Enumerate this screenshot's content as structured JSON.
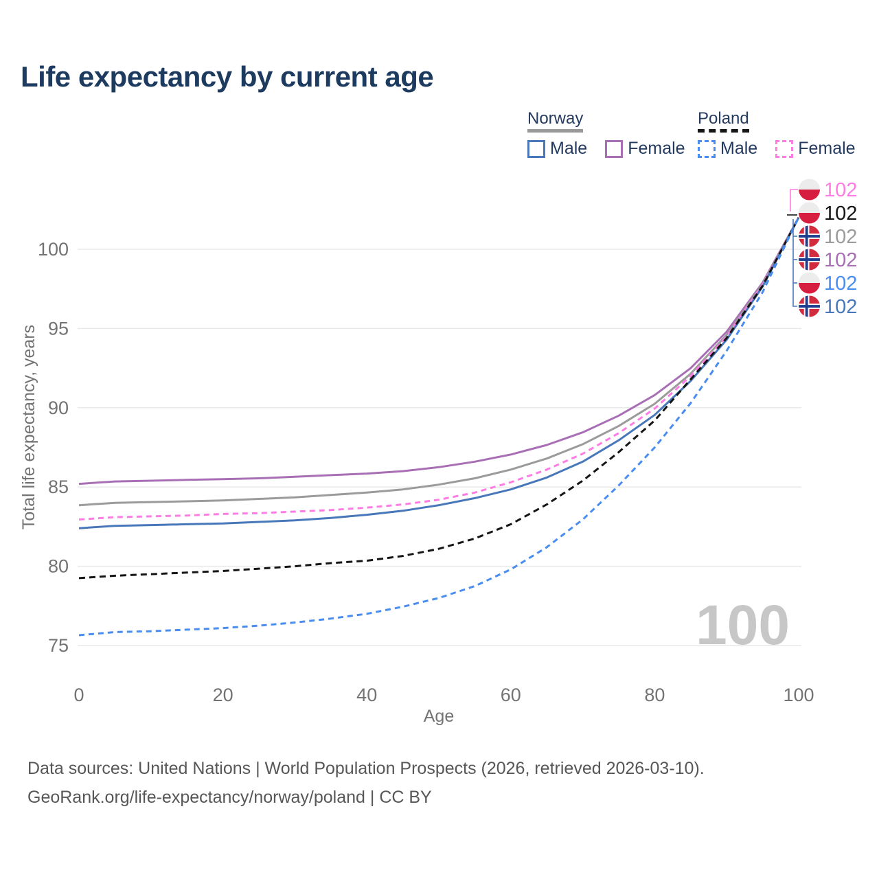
{
  "title": "Life expectancy by current age",
  "legend": {
    "norway": {
      "title": "Norway",
      "male": "Male",
      "female": "Female"
    },
    "poland": {
      "title": "Poland",
      "male": "Male",
      "female": "Female"
    }
  },
  "watermark": "100",
  "footer": {
    "line1": "Data sources: United Nations | World Population Prospects (2026, retrieved 2026-03-10).",
    "line2": "GeoRank.org/life-expectancy/norway/poland | CC BY"
  },
  "colors": {
    "title_text": "#1d3a5f",
    "legend_text": "#243a5e",
    "norway_underline": "#999999",
    "poland_underline": "#151515",
    "axis_text": "#737373",
    "gridline": "#e9e9e9",
    "watermark": "#c7c7c7",
    "footer_text": "#575757"
  },
  "chart_data": {
    "type": "line",
    "title": "Life expectancy by current age",
    "xlabel": "Age",
    "ylabel": "Total life expectancy, years",
    "xlim": [
      0,
      100
    ],
    "ylim": [
      75,
      100
    ],
    "xticks": [
      0,
      20,
      40,
      60,
      80,
      100
    ],
    "yticks": [
      75,
      80,
      85,
      90,
      95,
      100
    ],
    "grid": "horizontal-only",
    "legend_position": "top-right",
    "x": [
      0,
      5,
      10,
      15,
      20,
      25,
      30,
      35,
      40,
      45,
      50,
      55,
      60,
      65,
      70,
      75,
      80,
      85,
      90,
      95,
      100
    ],
    "series": [
      {
        "key": "norway_female",
        "name": "Norway Female",
        "color": "#a86fb5",
        "dashed": false,
        "values": [
          85.2,
          85.35,
          85.4,
          85.45,
          85.5,
          85.55,
          85.65,
          85.75,
          85.85,
          86.0,
          86.25,
          86.6,
          87.05,
          87.65,
          88.45,
          89.5,
          90.8,
          92.5,
          94.8,
          97.9,
          102
        ]
      },
      {
        "key": "norway_both",
        "name": "Norway",
        "color": "#9b9b9b",
        "dashed": false,
        "values": [
          83.85,
          84.0,
          84.05,
          84.1,
          84.15,
          84.25,
          84.35,
          84.5,
          84.65,
          84.85,
          85.15,
          85.55,
          86.1,
          86.8,
          87.7,
          88.85,
          90.25,
          92.15,
          94.6,
          97.8,
          102
        ]
      },
      {
        "key": "poland_female",
        "name": "Poland Female",
        "color": "#ff7ce5",
        "dashed": true,
        "values": [
          82.95,
          83.1,
          83.15,
          83.2,
          83.3,
          83.35,
          83.45,
          83.55,
          83.7,
          83.9,
          84.2,
          84.65,
          85.3,
          86.1,
          87.1,
          88.4,
          89.95,
          92.0,
          94.5,
          97.75,
          102
        ]
      },
      {
        "key": "norway_male",
        "name": "Norway Male",
        "color": "#4878b9",
        "dashed": false,
        "values": [
          82.4,
          82.55,
          82.6,
          82.65,
          82.7,
          82.8,
          82.9,
          83.05,
          83.25,
          83.5,
          83.85,
          84.3,
          84.85,
          85.6,
          86.6,
          87.95,
          89.55,
          91.7,
          94.3,
          97.65,
          102
        ]
      },
      {
        "key": "poland_both",
        "name": "Poland",
        "color": "#151515",
        "dashed": true,
        "values": [
          79.25,
          79.4,
          79.5,
          79.6,
          79.7,
          79.85,
          80.0,
          80.2,
          80.35,
          80.65,
          81.1,
          81.75,
          82.65,
          83.9,
          85.4,
          87.2,
          89.2,
          91.8,
          94.4,
          97.7,
          102
        ]
      },
      {
        "key": "poland_male",
        "name": "Poland Male",
        "color": "#4a8df0",
        "dashed": true,
        "values": [
          75.65,
          75.85,
          75.9,
          76.0,
          76.1,
          76.25,
          76.45,
          76.7,
          77.0,
          77.45,
          78.0,
          78.75,
          79.8,
          81.2,
          82.95,
          85.1,
          87.5,
          90.3,
          93.6,
          97.3,
          102
        ]
      }
    ],
    "end_labels": [
      {
        "flag": "poland",
        "series": "Poland Female",
        "value": "102",
        "color": "#ff7ce5"
      },
      {
        "flag": "poland",
        "series": "Poland",
        "value": "102",
        "color": "#151515"
      },
      {
        "flag": "norway",
        "series": "Norway",
        "value": "102",
        "color": "#9b9b9b"
      },
      {
        "flag": "norway",
        "series": "Norway Female",
        "value": "102",
        "color": "#a86fb5"
      },
      {
        "flag": "poland",
        "series": "Poland Male",
        "value": "102",
        "color": "#4a8df0"
      },
      {
        "flag": "norway",
        "series": "Norway Male",
        "value": "102",
        "color": "#4878b9"
      }
    ]
  }
}
